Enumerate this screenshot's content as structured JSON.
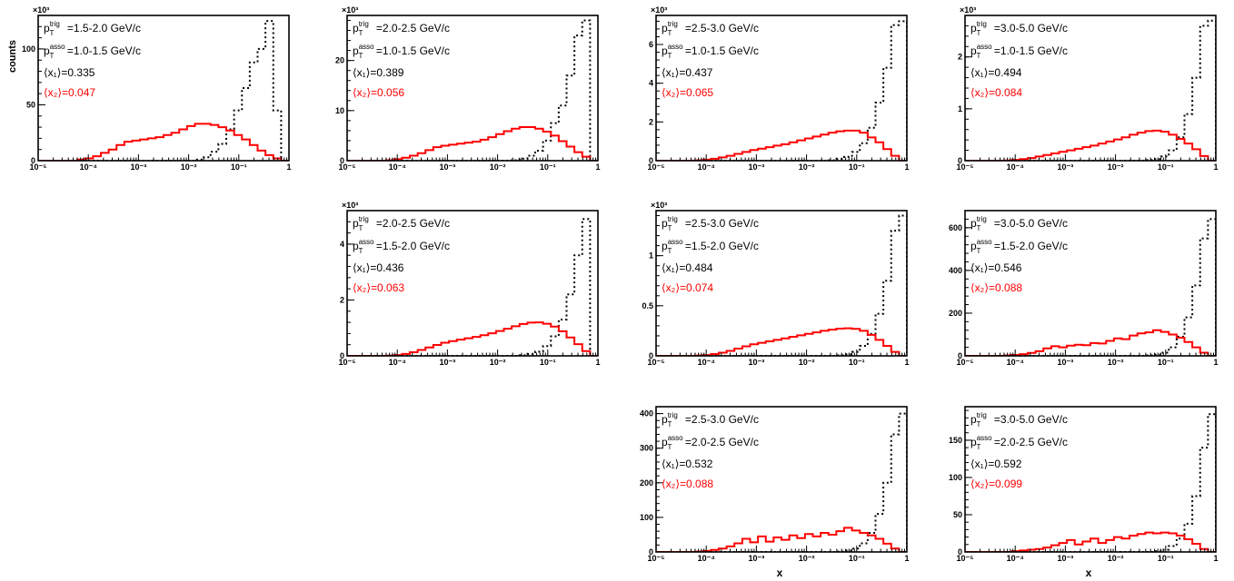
{
  "figure": {
    "ylabel": "counts",
    "xlabel": "x",
    "colors": {
      "x1": "#000000",
      "x2": "#ff0000",
      "axis": "#000000"
    }
  },
  "chart_data": [
    {
      "type": "area",
      "row": 0,
      "col": 0,
      "xscale": "log",
      "xlim": [
        1e-05,
        1
      ],
      "ylim": [
        0,
        130000
      ],
      "exponent_label": "×10³",
      "yticks": [
        0,
        50,
        100
      ],
      "ytick_scale": 1000,
      "xtick_labels": [
        "10⁻⁵",
        "10⁻⁴",
        "10⁻³",
        "10⁻²",
        "10⁻¹",
        "1"
      ],
      "annotations": [
        "p_T^trig=1.5-2.0 GeV/c",
        "p_T^asso=1.0-1.5 GeV/c",
        "⟨x₁⟩=0.335",
        "⟨x₂⟩=0.047"
      ],
      "series": [
        {
          "name": "⟨x₁⟩=0.335",
          "style": "dotted",
          "values": [
            0,
            0,
            0,
            0,
            0,
            0,
            0,
            0,
            0,
            0,
            0,
            0,
            0,
            0,
            0,
            0,
            0,
            0,
            0,
            0,
            1000,
            3000,
            8000,
            15000,
            28000,
            45000,
            65000,
            88000,
            100000,
            125000,
            45000,
            0
          ]
        },
        {
          "name": "⟨x₂⟩=0.047",
          "style": "solid",
          "values": [
            0,
            0,
            0,
            0,
            0,
            1000,
            2000,
            4000,
            7000,
            10000,
            14000,
            17000,
            18000,
            19000,
            20000,
            21000,
            23000,
            25000,
            28000,
            31000,
            33000,
            33000,
            32000,
            30000,
            27000,
            23000,
            19000,
            14000,
            9000,
            5000,
            2000,
            0
          ]
        }
      ]
    },
    {
      "type": "area",
      "row": 0,
      "col": 1,
      "xscale": "log",
      "xlim": [
        1e-05,
        1
      ],
      "ylim": [
        0,
        29000
      ],
      "exponent_label": "×10³",
      "yticks": [
        0,
        10,
        20
      ],
      "ytick_scale": 1000,
      "xtick_labels": [
        "10⁻⁵",
        "10⁻⁴",
        "10⁻³",
        "10⁻²",
        "10⁻¹",
        "1"
      ],
      "annotations": [
        "p_T^trig=2.0-2.5 GeV/c",
        "p_T^asso=1.0-1.5 GeV/c",
        "⟨x₁⟩=0.389",
        "⟨x₂⟩=0.056"
      ],
      "series": [
        {
          "name": "⟨x₁⟩=0.389",
          "style": "dotted",
          "values": [
            0,
            0,
            0,
            0,
            0,
            0,
            0,
            0,
            0,
            0,
            0,
            0,
            0,
            0,
            0,
            0,
            0,
            0,
            0,
            0,
            0,
            100,
            400,
            1000,
            2000,
            4000,
            7500,
            11000,
            17000,
            25000,
            28000,
            0
          ]
        },
        {
          "name": "⟨x₂⟩=0.056",
          "style": "solid",
          "values": [
            0,
            0,
            0,
            0,
            0,
            100,
            300,
            600,
            1000,
            1500,
            2100,
            2700,
            3000,
            3200,
            3400,
            3600,
            3800,
            4200,
            4700,
            5300,
            5900,
            6400,
            6700,
            6700,
            6400,
            5800,
            5000,
            3900,
            2800,
            1700,
            800,
            0
          ]
        }
      ]
    },
    {
      "type": "area",
      "row": 0,
      "col": 2,
      "xscale": "log",
      "xlim": [
        1e-05,
        1
      ],
      "ylim": [
        0,
        7500
      ],
      "exponent_label": "×10³",
      "yticks": [
        0,
        2,
        4,
        6
      ],
      "ytick_scale": 1000,
      "xtick_labels": [
        "10⁻⁵",
        "10⁻⁴",
        "10⁻³",
        "10⁻²",
        "10⁻¹",
        "1"
      ],
      "annotations": [
        "p_T^trig=2.5-3.0 GeV/c",
        "p_T^asso=1.0-1.5 GeV/c",
        "⟨x₁⟩=0.437",
        "⟨x₂⟩=0.065"
      ],
      "series": [
        {
          "name": "⟨x₁⟩=0.437",
          "style": "dotted",
          "values": [
            0,
            0,
            0,
            0,
            0,
            0,
            0,
            0,
            0,
            0,
            0,
            0,
            0,
            0,
            0,
            0,
            0,
            0,
            0,
            0,
            0,
            0,
            20,
            80,
            200,
            450,
            900,
            1700,
            3000,
            4800,
            7000,
            7200
          ]
        },
        {
          "name": "⟨x₂⟩=0.065",
          "style": "solid",
          "values": [
            0,
            0,
            0,
            0,
            0,
            20,
            50,
            100,
            170,
            250,
            350,
            450,
            550,
            620,
            700,
            780,
            850,
            950,
            1050,
            1150,
            1250,
            1350,
            1450,
            1520,
            1550,
            1550,
            1450,
            1200,
            950,
            600,
            250,
            0
          ]
        }
      ]
    },
    {
      "type": "area",
      "row": 0,
      "col": 3,
      "xscale": "log",
      "xlim": [
        1e-05,
        1
      ],
      "ylim": [
        0,
        2800
      ],
      "exponent_label": "×10³",
      "yticks": [
        0,
        1,
        2
      ],
      "ytick_scale": 1000,
      "xtick_labels": [
        "10⁻⁵",
        "10⁻⁴",
        "10⁻³",
        "10⁻²",
        "10⁻¹",
        "1"
      ],
      "annotations": [
        "p_T^trig=3.0-5.0 GeV/c",
        "p_T^asso=1.0-1.5 GeV/c",
        "⟨x₁⟩=0.494",
        "⟨x₂⟩=0.084"
      ],
      "series": [
        {
          "name": "⟨x₁⟩=0.494",
          "style": "dotted",
          "values": [
            0,
            0,
            0,
            0,
            0,
            0,
            0,
            0,
            0,
            0,
            0,
            0,
            0,
            0,
            0,
            0,
            0,
            0,
            0,
            0,
            0,
            0,
            0,
            10,
            30,
            80,
            200,
            450,
            900,
            1600,
            2600,
            2700
          ]
        },
        {
          "name": "⟨x₂⟩=0.084",
          "style": "solid",
          "values": [
            0,
            0,
            0,
            0,
            0,
            5,
            15,
            30,
            50,
            80,
            110,
            140,
            170,
            200,
            230,
            260,
            290,
            330,
            370,
            410,
            450,
            500,
            540,
            570,
            580,
            560,
            500,
            420,
            330,
            220,
            90,
            0
          ]
        }
      ]
    },
    {
      "type": "area",
      "row": 1,
      "col": 1,
      "xscale": "log",
      "xlim": [
        1e-05,
        1
      ],
      "ylim": [
        0,
        5200
      ],
      "exponent_label": "×10³",
      "yticks": [
        0,
        2,
        4
      ],
      "ytick_scale": 1000,
      "xtick_labels": [
        "10⁻⁵",
        "10⁻⁴",
        "10⁻³",
        "10⁻²",
        "10⁻¹",
        "1"
      ],
      "annotations": [
        "p_T^trig=2.0-2.5 GeV/c",
        "p_T^asso=1.5-2.0 GeV/c",
        "⟨x₁⟩=0.436",
        "⟨x₂⟩=0.063"
      ],
      "series": [
        {
          "name": "⟨x₁⟩=0.436",
          "style": "dotted",
          "values": [
            0,
            0,
            0,
            0,
            0,
            0,
            0,
            0,
            0,
            0,
            0,
            0,
            0,
            0,
            0,
            0,
            0,
            0,
            0,
            0,
            0,
            0,
            20,
            60,
            150,
            350,
            700,
            1300,
            2200,
            3600,
            4900,
            0
          ]
        },
        {
          "name": "⟨x₂⟩=0.063",
          "style": "solid",
          "values": [
            0,
            0,
            0,
            0,
            0,
            10,
            30,
            70,
            130,
            210,
            300,
            390,
            470,
            530,
            580,
            630,
            680,
            740,
            810,
            890,
            970,
            1060,
            1140,
            1190,
            1200,
            1150,
            1050,
            880,
            660,
            420,
            170,
            0
          ]
        }
      ]
    },
    {
      "type": "area",
      "row": 1,
      "col": 2,
      "xscale": "log",
      "xlim": [
        1e-05,
        1
      ],
      "ylim": [
        0,
        1450
      ],
      "exponent_label": "×10³",
      "yticks": [
        0,
        0.5,
        1
      ],
      "ytick_scale": 1000,
      "xtick_labels": [
        "10⁻⁵",
        "10⁻⁴",
        "10⁻³",
        "10⁻²",
        "10⁻¹",
        "1"
      ],
      "annotations": [
        "p_T^trig=2.5-3.0 GeV/c",
        "p_T^asso=1.5-2.0 GeV/c",
        "⟨x₁⟩=0.484",
        "⟨x₂⟩=0.074"
      ],
      "series": [
        {
          "name": "⟨x₁⟩=0.484",
          "style": "dotted",
          "values": [
            0,
            0,
            0,
            0,
            0,
            0,
            0,
            0,
            0,
            0,
            0,
            0,
            0,
            0,
            0,
            0,
            0,
            0,
            0,
            0,
            0,
            0,
            0,
            5,
            15,
            40,
            100,
            220,
            420,
            750,
            1250,
            1400
          ]
        },
        {
          "name": "⟨x₂⟩=0.074",
          "style": "solid",
          "values": [
            0,
            0,
            0,
            0,
            0,
            3,
            8,
            18,
            32,
            50,
            72,
            95,
            115,
            130,
            145,
            160,
            175,
            190,
            205,
            220,
            235,
            250,
            262,
            272,
            275,
            270,
            250,
            210,
            160,
            100,
            40,
            0
          ]
        }
      ]
    },
    {
      "type": "area",
      "row": 1,
      "col": 3,
      "xscale": "log",
      "xlim": [
        1e-05,
        1
      ],
      "ylim": [
        0,
        680
      ],
      "exponent_label": "",
      "yticks": [
        0,
        200,
        400,
        600
      ],
      "ytick_scale": 1,
      "xtick_labels": [
        "10⁻⁵",
        "10⁻⁴",
        "10⁻³",
        "10⁻²",
        "10⁻¹",
        "1"
      ],
      "annotations": [
        "p_T^trig=3.0-5.0 GeV/c",
        "p_T^asso=1.5-2.0 GeV/c",
        "⟨x₁⟩=0.546",
        "⟨x₂⟩=0.088"
      ],
      "series": [
        {
          "name": "⟨x₁⟩=0.546",
          "style": "dotted",
          "values": [
            0,
            0,
            0,
            0,
            0,
            0,
            0,
            0,
            0,
            0,
            0,
            0,
            0,
            0,
            0,
            0,
            0,
            0,
            0,
            0,
            0,
            0,
            0,
            2,
            6,
            15,
            40,
            90,
            180,
            330,
            550,
            640
          ]
        },
        {
          "name": "⟨x₂⟩=0.088",
          "style": "solid",
          "values": [
            0,
            0,
            0,
            0,
            0,
            2,
            4,
            8,
            14,
            22,
            35,
            45,
            40,
            48,
            52,
            50,
            60,
            58,
            70,
            82,
            78,
            95,
            105,
            110,
            120,
            112,
            100,
            85,
            65,
            40,
            15,
            0
          ]
        }
      ]
    },
    {
      "type": "area",
      "row": 2,
      "col": 2,
      "xscale": "log",
      "xlim": [
        1e-05,
        1
      ],
      "ylim": [
        0,
        420
      ],
      "exponent_label": "",
      "yticks": [
        0,
        100,
        200,
        300,
        400
      ],
      "ytick_scale": 1,
      "xtick_labels": [
        "10⁻⁵",
        "10⁻⁴",
        "10⁻³",
        "10⁻²",
        "10⁻¹",
        "1"
      ],
      "annotations": [
        "p_T^trig=2.5-3.0 GeV/c",
        "p_T^asso=2.0-2.5 GeV/c",
        "⟨x₁⟩=0.532",
        "⟨x₂⟩=0.088"
      ],
      "series": [
        {
          "name": "⟨x₁⟩=0.532",
          "style": "dotted",
          "values": [
            0,
            0,
            0,
            0,
            0,
            0,
            0,
            0,
            0,
            0,
            0,
            0,
            0,
            0,
            0,
            0,
            0,
            0,
            0,
            0,
            0,
            0,
            0,
            1,
            4,
            10,
            25,
            55,
            110,
            200,
            340,
            400
          ]
        },
        {
          "name": "⟨x₂⟩=0.088",
          "style": "solid",
          "values": [
            0,
            0,
            0,
            0,
            0,
            1,
            3,
            6,
            10,
            16,
            25,
            38,
            28,
            45,
            30,
            42,
            35,
            48,
            40,
            52,
            45,
            55,
            50,
            60,
            70,
            62,
            55,
            48,
            38,
            24,
            10,
            0
          ]
        }
      ]
    },
    {
      "type": "area",
      "row": 2,
      "col": 3,
      "xscale": "log",
      "xlim": [
        1e-05,
        1
      ],
      "ylim": [
        0,
        195
      ],
      "exponent_label": "",
      "yticks": [
        0,
        50,
        100,
        150
      ],
      "ytick_scale": 1,
      "xtick_labels": [
        "10⁻⁵",
        "10⁻⁴",
        "10⁻³",
        "10⁻²",
        "10⁻¹",
        "1"
      ],
      "annotations": [
        "p_T^trig=3.0-5.0 GeV/c",
        "p_T^asso=2.0-2.5 GeV/c",
        "⟨x₁⟩=0.592",
        "⟨x₂⟩=0.099"
      ],
      "series": [
        {
          "name": "⟨x₁⟩=0.592",
          "style": "dotted",
          "values": [
            0,
            0,
            0,
            0,
            0,
            0,
            0,
            0,
            0,
            0,
            0,
            0,
            0,
            0,
            0,
            0,
            0,
            0,
            0,
            0,
            0,
            0,
            0,
            0,
            1,
            3,
            8,
            18,
            38,
            75,
            140,
            185
          ]
        },
        {
          "name": "⟨x₂⟩=0.099",
          "style": "solid",
          "values": [
            0,
            0,
            0,
            0,
            0,
            0,
            1,
            2,
            3,
            4,
            6,
            9,
            12,
            16,
            10,
            14,
            18,
            12,
            16,
            20,
            18,
            22,
            24,
            26,
            25,
            26,
            25,
            22,
            17,
            11,
            4,
            0
          ]
        }
      ]
    }
  ]
}
